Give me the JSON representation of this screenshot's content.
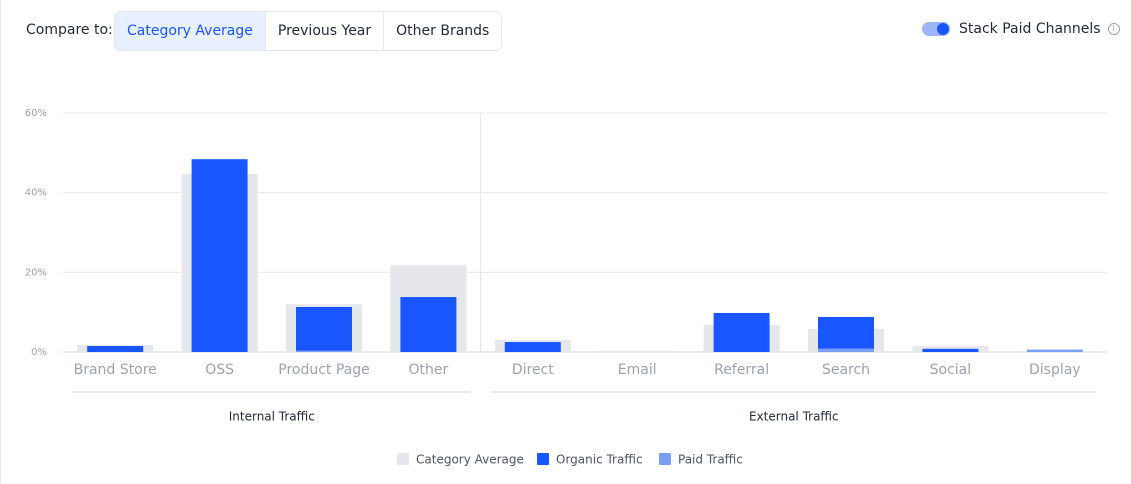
{
  "controls": {
    "compare_label": "Compare to:",
    "options": [
      {
        "label": "Category Average",
        "active": true
      },
      {
        "label": "Previous Year",
        "active": false
      },
      {
        "label": "Other Brands",
        "active": false
      }
    ],
    "toggle": {
      "label": "Stack Paid Channels",
      "on": true
    }
  },
  "chart_data": {
    "type": "bar",
    "groups": [
      {
        "name": "Internal Traffic",
        "categories": [
          "Brand Store",
          "OSS",
          "Product Page",
          "Other"
        ]
      },
      {
        "name": "External Traffic",
        "categories": [
          "Direct",
          "Email",
          "Referral",
          "Search",
          "Social",
          "Display"
        ]
      }
    ],
    "series": [
      {
        "name": "Category Average",
        "color": "#e5e7eb",
        "values": [
          1.8,
          44.7,
          12.0,
          21.8,
          3.0,
          0.3,
          6.8,
          5.8,
          1.5,
          0.2
        ]
      },
      {
        "name": "Organic Traffic",
        "color": "#1a56ff",
        "values": [
          1.5,
          48.4,
          11.0,
          13.8,
          2.5,
          0,
          9.8,
          8.0,
          0.8,
          0
        ]
      },
      {
        "name": "Paid Traffic",
        "color": "#7b9ef5",
        "values": [
          0,
          0,
          0.3,
          0,
          0,
          0,
          0,
          0.8,
          0,
          0.6
        ]
      }
    ],
    "ylim": [
      0,
      60
    ],
    "yticks": [
      {
        "value": 0,
        "label": "0%"
      },
      {
        "value": 20,
        "label": "20%"
      },
      {
        "value": 40,
        "label": "40%"
      },
      {
        "value": 60,
        "label": "60%"
      }
    ],
    "grid": true
  }
}
